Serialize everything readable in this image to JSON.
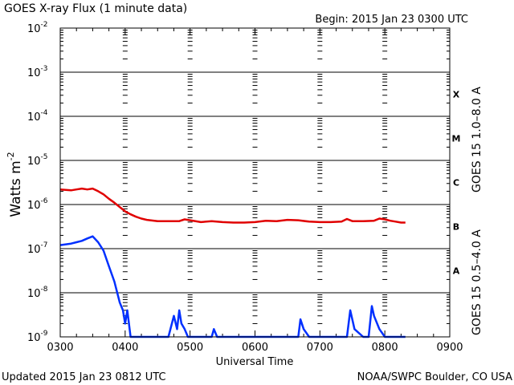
{
  "chart_data": {
    "type": "line",
    "title": "GOES X-ray Flux (1 minute data)",
    "begin_label": "Begin: 2015 Jan 23 0300 UTC",
    "ylabel_main": "Watts m",
    "ylabel_exp": "-2",
    "xlabel": "Universal Time",
    "footer_left": "Updated 2015 Jan 23 0812 UTC",
    "footer_right": "NOAA/SWPC Boulder, CO USA",
    "y_scale": "log",
    "ylim": [
      1e-09,
      0.01
    ],
    "xlim": [
      "0300",
      "0900"
    ],
    "x_ticks": [
      "0300",
      "0400",
      "0500",
      "0600",
      "0700",
      "0800",
      "0900"
    ],
    "y_ticks": [
      {
        "base": "10",
        "exp": "-2"
      },
      {
        "base": "10",
        "exp": "-3"
      },
      {
        "base": "10",
        "exp": "-4"
      },
      {
        "base": "10",
        "exp": "-5"
      },
      {
        "base": "10",
        "exp": "-6"
      },
      {
        "base": "10",
        "exp": "-7"
      },
      {
        "base": "10",
        "exp": "-8"
      },
      {
        "base": "10",
        "exp": "-9"
      }
    ],
    "flare_classes": [
      "X",
      "M",
      "C",
      "B",
      "A"
    ],
    "grid": true,
    "series": [
      {
        "name": "GOES 15 1.0–8.0 A",
        "color": "#e00000",
        "x": [
          "0300",
          "0310",
          "0315",
          "0320",
          "0325",
          "0330",
          "0335",
          "0340",
          "0345",
          "0350",
          "0355",
          "0400",
          "0405",
          "0410",
          "0415",
          "0420",
          "0430",
          "0440",
          "0450",
          "0455",
          "0500",
          "0510",
          "0520",
          "0530",
          "0540",
          "0550",
          "0600",
          "0610",
          "0620",
          "0630",
          "0640",
          "0650",
          "0700",
          "0710",
          "0720",
          "0725",
          "0730",
          "0740",
          "0750",
          "0755",
          "0800",
          "0805",
          "0810",
          "0815",
          "0819"
        ],
        "values": [
          2.2e-06,
          2.1e-06,
          2.2e-06,
          2.3e-06,
          2.2e-06,
          2.3e-06,
          2e-06,
          1.7e-06,
          1.35e-06,
          1.1e-06,
          8.8e-07,
          7e-07,
          6e-07,
          5.3e-07,
          4.8e-07,
          4.5e-07,
          4.2e-07,
          4.2e-07,
          4.2e-07,
          4.6e-07,
          4.4e-07,
          4e-07,
          4.2e-07,
          4e-07,
          3.9e-07,
          3.9e-07,
          4e-07,
          4.3e-07,
          4.2e-07,
          4.5e-07,
          4.4e-07,
          4.1e-07,
          4e-07,
          4e-07,
          4.1e-07,
          4.7e-07,
          4.2e-07,
          4.2e-07,
          4.3e-07,
          4.8e-07,
          4.6e-07,
          4.3e-07,
          4.1e-07,
          3.9e-07,
          3.9e-07
        ]
      },
      {
        "name": "GOES 15 0.5–4.0 A",
        "color": "#0030ff",
        "x": [
          "0300",
          "0310",
          "0315",
          "0320",
          "0325",
          "0330",
          "0335",
          "0340",
          "0345",
          "0350",
          "0355",
          "0358",
          "0400",
          "0402",
          "0405",
          "0410",
          "0420",
          "0430",
          "0440",
          "0445",
          "0448",
          "0450",
          "0452",
          "0455",
          "0458",
          "0500",
          "0510",
          "0520",
          "0522",
          "0525",
          "0530",
          "0540",
          "0600",
          "0630",
          "0640",
          "0642",
          "0645",
          "0650",
          "0700",
          "0720",
          "0725",
          "0728",
          "0732",
          "0740",
          "0745",
          "0748",
          "0750",
          "0755",
          "0800",
          "0810",
          "0819"
        ],
        "values": [
          1.2e-07,
          1.3e-07,
          1.4e-07,
          1.5e-07,
          1.7e-07,
          1.9e-07,
          1.4e-07,
          9e-08,
          4e-08,
          1.8e-08,
          6e-09,
          4e-09,
          2e-09,
          4e-09,
          1e-09,
          1e-09,
          1e-09,
          1e-09,
          1e-09,
          3e-09,
          1.5e-09,
          4e-09,
          2e-09,
          1.5e-09,
          1e-09,
          1e-09,
          1e-09,
          1e-09,
          1.5e-09,
          1e-09,
          1e-09,
          1e-09,
          1e-09,
          1e-09,
          1e-09,
          2.5e-09,
          1.5e-09,
          1e-09,
          1e-09,
          1e-09,
          1e-09,
          4e-09,
          1.5e-09,
          1e-09,
          1e-09,
          5e-09,
          3e-09,
          1.5e-09,
          1e-09,
          1e-09,
          1e-09
        ]
      }
    ]
  }
}
